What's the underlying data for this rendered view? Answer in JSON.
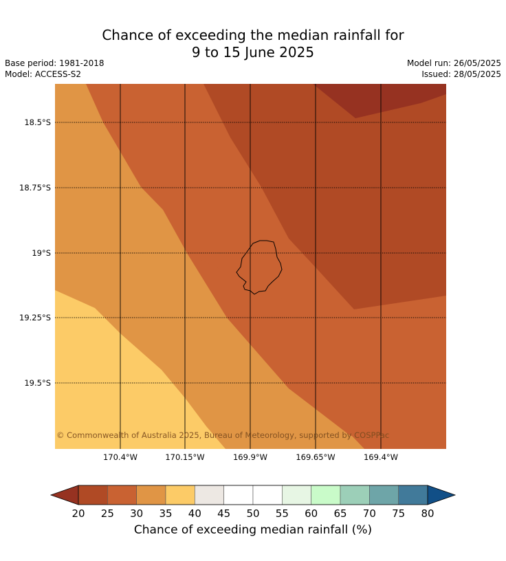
{
  "header": {
    "title_line1": "Chance of exceeding the median rainfall for",
    "title_line2": "9 to 15 June 2025",
    "base_period": "Base period: 1981-2018",
    "model": "Model: ACCESS-S2",
    "model_run": "Model run: 26/05/2025",
    "issued": "Issued: 28/05/2025"
  },
  "map": {
    "latitude_labels": [
      "18.5°S",
      "18.75°S",
      "19°S",
      "19.25°S",
      "19.5°S"
    ],
    "longitude_labels": [
      "170.4°W",
      "170.15°W",
      "169.9°W",
      "169.65°W",
      "169.4°W"
    ],
    "island": "Niue",
    "copyright": "© Commonwealth of Australia 2025, Bureau of Meteorology, supported by COSPPac"
  },
  "colorbar": {
    "title": "Chance of exceeding median rainfall (%)",
    "ticks": [
      "20",
      "25",
      "30",
      "35",
      "40",
      "45",
      "50",
      "55",
      "60",
      "65",
      "70",
      "75",
      "80"
    ],
    "colors": [
      "#b04a25",
      "#c96232",
      "#e09545",
      "#fccb67",
      "#ede8e3",
      "#ffffff",
      "#ffffff",
      "#e7f6e4",
      "#c9fbc9",
      "#9ccfb8",
      "#6ea5a8",
      "#417a9a"
    ],
    "under_color": "#963221",
    "over_color": "#114f87"
  },
  "colors": {
    "band_20_25": "#963221",
    "band_25_30": "#b04a25",
    "band_30_35": "#c96232",
    "band_35_40": "#e09545",
    "band_40_45": "#fccb67"
  }
}
